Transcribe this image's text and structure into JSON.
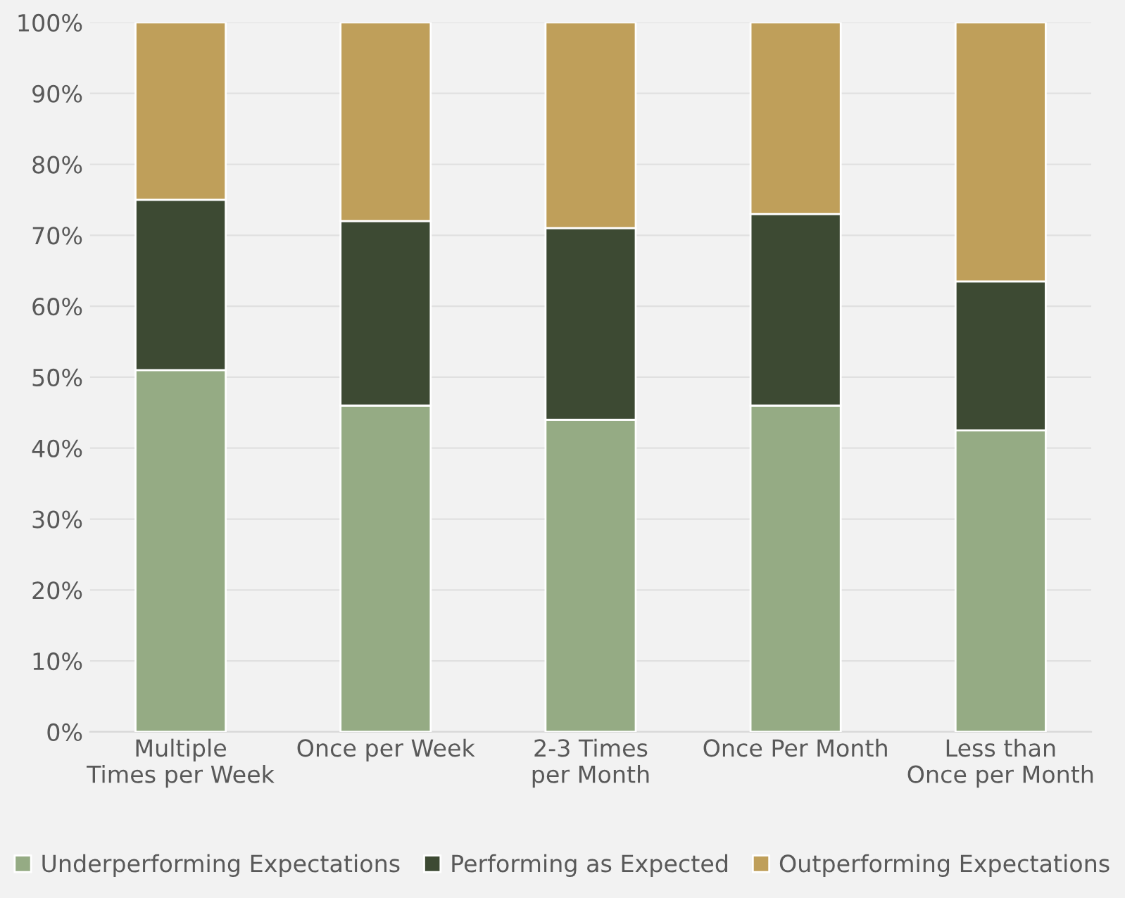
{
  "chart_data": {
    "type": "bar",
    "stacked": true,
    "categories": [
      "Multiple Times per Week",
      "Once per Week",
      "2-3 Times per Month",
      "Once Per Month",
      "Less than Once per Month"
    ],
    "series": [
      {
        "name": "Underperforming Expectations",
        "color": "#95ab84",
        "values": [
          51,
          46,
          44,
          46,
          42.5
        ]
      },
      {
        "name": "Performing as Expected",
        "color": "#3d4a33",
        "values": [
          24,
          26,
          27,
          27,
          21
        ]
      },
      {
        "name": "Outperforming Expectations",
        "color": "#bf9f5a",
        "values": [
          25,
          28,
          29,
          27,
          36.5
        ]
      }
    ],
    "ylim": [
      0,
      100
    ],
    "yticks": [
      {
        "value": 0,
        "label": "0%"
      },
      {
        "value": 10,
        "label": "10%"
      },
      {
        "value": 20,
        "label": "20%"
      },
      {
        "value": 30,
        "label": "30%"
      },
      {
        "value": 40,
        "label": "40%"
      },
      {
        "value": 50,
        "label": "50%"
      },
      {
        "value": 60,
        "label": "60%"
      },
      {
        "value": 70,
        "label": "70%"
      },
      {
        "value": 80,
        "label": "80%"
      },
      {
        "value": 90,
        "label": "90%"
      },
      {
        "value": 100,
        "label": "100%"
      }
    ],
    "grid": "y",
    "legend": "bottom"
  }
}
